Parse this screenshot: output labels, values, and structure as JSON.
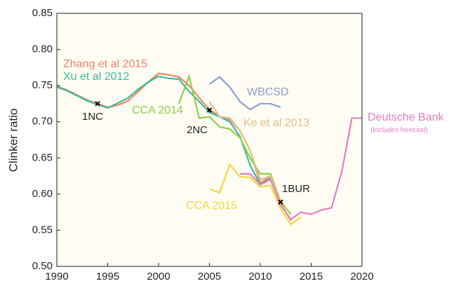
{
  "chart_data": {
    "type": "line",
    "y_label": "Clinker ratio",
    "xlim": [
      1990,
      2020
    ],
    "xticks": [
      1990,
      1995,
      2000,
      2005,
      2010,
      2015,
      2020
    ],
    "ylim": [
      0.5,
      0.85
    ],
    "yticks": [
      {
        "value": 0.5,
        "label": "0.50"
      },
      0.55,
      {
        "value": 0.6,
        "label": "0.60"
      },
      0.65,
      {
        "value": 0.7,
        "label": "0.70"
      },
      0.75,
      {
        "value": 0.8,
        "label": "0.80"
      },
      0.85
    ],
    "series": [
      {
        "name": "Zhang et al 2015",
        "color": "#f4845f",
        "x": [
          1990,
          1991,
          1992,
          1993,
          1994,
          1995,
          1996,
          1997,
          1998,
          1999,
          2000,
          2001,
          2002,
          2003,
          2004,
          2005,
          2006,
          2007,
          2008,
          2009,
          2010,
          2011,
          2012,
          2013
        ],
        "values": [
          0.749,
          0.744,
          0.737,
          0.73,
          0.725,
          0.72,
          0.723,
          0.729,
          0.742,
          0.755,
          0.767,
          0.765,
          0.762,
          0.75,
          0.733,
          0.717,
          0.707,
          0.703,
          0.688,
          0.66,
          0.615,
          0.625,
          0.585,
          0.565
        ]
      },
      {
        "name": "Xu et al 2012",
        "color": "#3cb99d",
        "x": [
          1990,
          1991,
          1992,
          1993,
          1994,
          1995,
          1996,
          1997,
          1998,
          1999,
          2000,
          2001,
          2002,
          2003,
          2004,
          2005,
          2006,
          2007,
          2008,
          2009,
          2010,
          2011
        ],
        "values": [
          0.748,
          0.743,
          0.736,
          0.729,
          0.724,
          0.719,
          0.726,
          0.733,
          0.745,
          0.755,
          0.763,
          0.76,
          0.759,
          0.742,
          0.728,
          0.713,
          0.707,
          0.7,
          0.68,
          0.64,
          0.613,
          0.622
        ]
      },
      {
        "name": "CCA 2014",
        "color": "#8dcf4a",
        "x": [
          2002,
          2003,
          2004,
          2005,
          2006,
          2007,
          2008,
          2009,
          2010,
          2011,
          2012,
          2013
        ],
        "values": [
          0.725,
          0.763,
          0.705,
          0.707,
          0.693,
          0.69,
          0.678,
          0.65,
          0.628,
          0.628,
          0.59,
          0.572
        ]
      },
      {
        "name": "WBCSD",
        "color": "#8a9fd1",
        "x": [
          2005,
          2006,
          2007,
          2008,
          2009,
          2010,
          2011,
          2012
        ],
        "values": [
          0.752,
          0.762,
          0.748,
          0.728,
          0.717,
          0.725,
          0.725,
          0.72
        ]
      },
      {
        "name": "Ke et al 2013",
        "color": "#e3bf8a",
        "x": [
          2005,
          2006,
          2007,
          2008,
          2009,
          2010,
          2011,
          2012,
          2013
        ],
        "values": [
          0.728,
          0.707,
          0.705,
          0.688,
          0.66,
          0.62,
          0.625,
          0.588,
          0.563
        ]
      },
      {
        "name": "CCA 2015",
        "color": "#f5d63a",
        "x": [
          2005,
          2006,
          2007,
          2008,
          2009,
          2010,
          2011,
          2012,
          2013,
          2014
        ],
        "values": [
          0.607,
          0.602,
          0.641,
          0.624,
          0.623,
          0.61,
          0.612,
          0.58,
          0.558,
          0.568
        ]
      },
      {
        "name": "Deutsche Bank",
        "note": "(includes forecast)",
        "color": "#e57cbf",
        "x": [
          2008,
          2009,
          2010,
          2011,
          2012,
          2013,
          2014,
          2015,
          2016,
          2017,
          2018,
          2019,
          2020
        ],
        "values": [
          0.628,
          0.628,
          0.613,
          0.62,
          0.585,
          0.565,
          0.575,
          0.572,
          0.578,
          0.581,
          0.63,
          0.705,
          0.705
        ]
      }
    ],
    "markers": [
      {
        "label": "1NC",
        "x": 1994,
        "y": 0.725
      },
      {
        "label": "2NC",
        "x": 2005,
        "y": 0.716
      },
      {
        "label": "1BUR",
        "x": 2012,
        "y": 0.589
      }
    ]
  }
}
